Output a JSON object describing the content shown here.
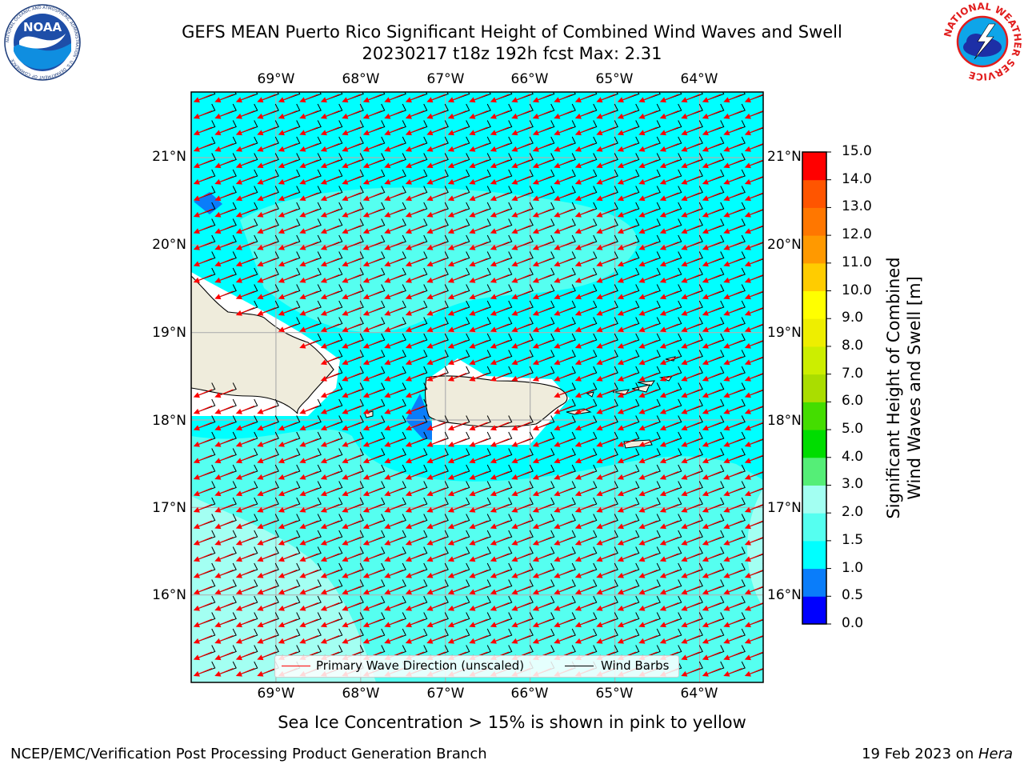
{
  "header": {
    "title_line1": "GEFS MEAN Puerto Rico Significant Height of Combined Wind Waves and Swell",
    "title_line2": "20230217 t18z 192h fcst   Max: 2.31",
    "left_logo": "NOAA",
    "left_logo_ring_text": "NATIONAL OCEANIC AND ATMOSPHERIC ADMINISTRATION · U.S. DEPARTMENT OF COMMERCE",
    "right_logo_ring_text": "NATIONAL WEATHER SERVICE"
  },
  "map": {
    "lon_range": [
      -70.0,
      -63.25
    ],
    "lat_range": [
      15.0,
      21.75
    ],
    "lon_ticks": [
      "69°W",
      "68°W",
      "67°W",
      "66°W",
      "65°W",
      "64°W"
    ],
    "lat_ticks": [
      "21°N",
      "20°N",
      "19°N",
      "18°N",
      "17°N",
      "16°N"
    ],
    "ocean_color": "#00ffff",
    "land_color": "#efecdc",
    "wave_arrow_color": "#ff0000",
    "wind_barb_color": "#000000",
    "grid": true
  },
  "legend": {
    "wave_label": "Primary Wave Direction (unscaled)",
    "barb_label": "Wind Barbs",
    "placement": "bottom-center"
  },
  "colorbar": {
    "title_line1": "Significant Height of Combined",
    "title_line2": "Wind Waves and Swell [m]",
    "levels": [
      "0.0",
      "0.5",
      "1.0",
      "1.5",
      "2.0",
      "3.0",
      "4.0",
      "5.0",
      "6.0",
      "7.0",
      "8.0",
      "9.0",
      "10.0",
      "11.0",
      "12.0",
      "13.0",
      "14.0",
      "15.0"
    ],
    "colors": [
      "#0000ff",
      "#0a7dfa",
      "#00ffff",
      "#55fff0",
      "#a3fff2",
      "#55ee77",
      "#00dd00",
      "#44dd00",
      "#aadd00",
      "#ccee00",
      "#eeee00",
      "#ffff00",
      "#ffcc00",
      "#ff9900",
      "#ff7700",
      "#ff5500",
      "#ff0000"
    ]
  },
  "notes": {
    "sea_ice": "Sea Ice Concentration > 15% is shown in pink to yellow"
  },
  "footer": {
    "left": "NCEP/EMC/Verification Post Processing Product Generation Branch",
    "right_prefix": "19 Feb 2023 on ",
    "right_machine": "Hera"
  }
}
